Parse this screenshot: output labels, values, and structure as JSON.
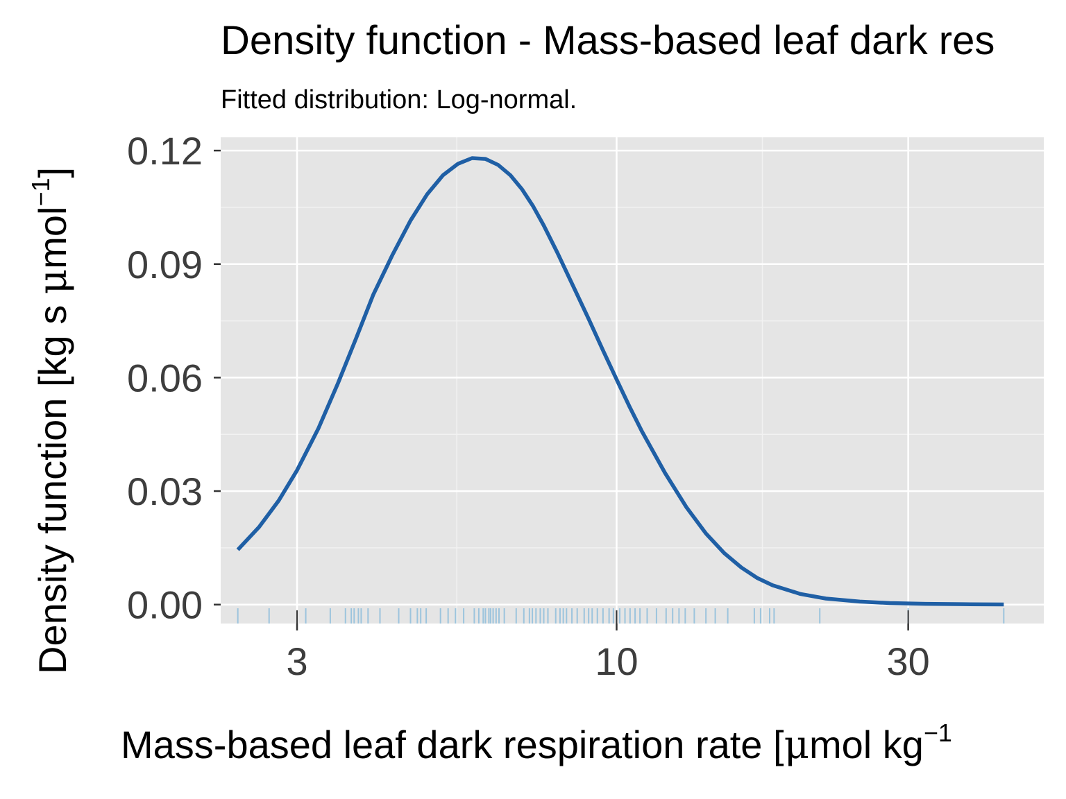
{
  "chart_data": {
    "type": "line",
    "title": "Density function - Mass-based leaf dark res",
    "subtitle": "Fitted distribution: Log-normal.",
    "xlabel": {
      "main": "Mass-based leaf dark respiration rate [",
      "mu": "μ",
      "rest": "mol  kg",
      "sup": "−1"
    },
    "ylabel": {
      "main": "Density function [kg  s  ",
      "mu": "μ",
      "rest": "mol",
      "sup": "−1",
      "close": "]"
    },
    "x_scale": "log",
    "xlim": [
      2.25,
      50
    ],
    "ylim": [
      -0.005,
      0.1235
    ],
    "x_ticks": [
      3,
      10,
      30
    ],
    "x_tick_labels": [
      "3",
      "10",
      "30"
    ],
    "x_minor_ticks": [
      5.477,
      17.32
    ],
    "y_ticks": [
      0,
      0.03,
      0.06,
      0.09,
      0.12
    ],
    "y_tick_labels": [
      "0.00",
      "0.03",
      "0.06",
      "0.09",
      "0.12"
    ],
    "grid": true,
    "line_color": "#1f5fa5",
    "rug_color": "#9cc4dd",
    "panel_color": "#e5e5e5",
    "series": [
      {
        "x": [
          2.4,
          2.6,
          2.8,
          3.0,
          3.25,
          3.5,
          3.75,
          4.0,
          4.3,
          4.6,
          4.9,
          5.2,
          5.5,
          5.8,
          6.1,
          6.4,
          6.7,
          7.0,
          7.3,
          7.6,
          8.0,
          8.5,
          9.0,
          9.5,
          10.0,
          10.5,
          11.0,
          12.0,
          13.0,
          14.0,
          15.0,
          16.0,
          17.0,
          18.0,
          20.0,
          22.0,
          25.0,
          28.0,
          32.0,
          37.0,
          43.0
        ],
        "y": [
          0.0145,
          0.0205,
          0.0275,
          0.0355,
          0.0465,
          0.0585,
          0.0705,
          0.082,
          0.0925,
          0.1015,
          0.1085,
          0.1135,
          0.1165,
          0.118,
          0.1178,
          0.1162,
          0.1135,
          0.1098,
          0.1053,
          0.1002,
          0.093,
          0.084,
          0.0755,
          0.0672,
          0.0595,
          0.0523,
          0.0458,
          0.0348,
          0.0258,
          0.0188,
          0.0136,
          0.0098,
          0.007,
          0.0051,
          0.0028,
          0.0016,
          0.0008,
          0.0004,
          0.0002,
          0.0001,
          5e-05
        ]
      }
    ],
    "rug_values": [
      2.4,
      2.7,
      3.1,
      3.4,
      3.6,
      3.68,
      3.72,
      3.78,
      3.82,
      3.92,
      4.1,
      4.4,
      4.6,
      4.72,
      4.78,
      4.88,
      5.15,
      5.3,
      5.45,
      5.62,
      5.85,
      5.95,
      6.05,
      6.1,
      6.18,
      6.22,
      6.28,
      6.35,
      6.42,
      6.55,
      6.85,
      7.05,
      7.2,
      7.28,
      7.38,
      7.5,
      7.6,
      7.72,
      7.95,
      8.08,
      8.18,
      8.28,
      8.45,
      8.62,
      8.85,
      9.0,
      9.12,
      9.3,
      9.5,
      9.72,
      9.88,
      10.12,
      10.32,
      10.52,
      10.72,
      10.92,
      11.22,
      11.62,
      12.05,
      12.35,
      12.65,
      12.95,
      13.4,
      14.0,
      14.5,
      15.2,
      16.8,
      17.2,
      17.8,
      18.1,
      21.5,
      30.0,
      43.0
    ]
  }
}
